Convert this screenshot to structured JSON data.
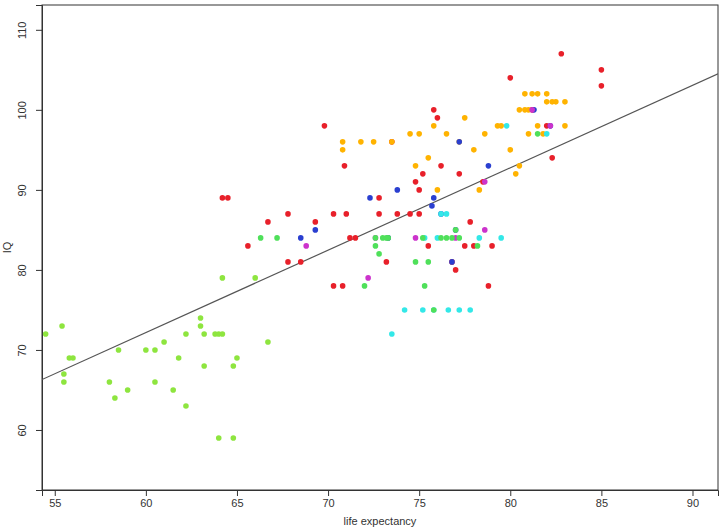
{
  "chart_data": {
    "type": "scatter",
    "x_label": "life expectancy",
    "y_label": "IQ",
    "xlim": [
      54.3,
      91.4
    ],
    "ylim": [
      52.5,
      113.1
    ],
    "xticks": [
      55,
      60,
      65,
      70,
      75,
      80,
      85,
      90
    ],
    "yticks": [
      60,
      70,
      80,
      90,
      100,
      110
    ],
    "marker": "circle",
    "trend_line": {
      "x": [
        54.3,
        91.4
      ],
      "y": [
        66.3,
        104.5
      ]
    },
    "series": [
      {
        "color": "#8ee53f",
        "x": [
          54.5,
          55.4,
          55.5,
          55.5,
          55.8,
          56,
          58,
          58.3,
          58.5,
          59,
          60,
          60.5,
          60.5,
          61,
          61.5,
          61.8,
          62.2,
          62.2,
          63,
          63,
          63.2,
          63.2,
          63.8,
          64,
          64.2,
          64.2,
          64,
          64.8,
          64.8,
          65,
          66.7,
          66
        ],
        "values": [
          72,
          73,
          67,
          66,
          69,
          69,
          66,
          64,
          70,
          65,
          70,
          70,
          66,
          71,
          65,
          69,
          72,
          63,
          74,
          73,
          68,
          72,
          72,
          72,
          72,
          79,
          59,
          59,
          68,
          69,
          71,
          79
        ]
      },
      {
        "color": "#e8202a",
        "x": [
          65.6,
          64.2,
          64.5,
          66.7,
          67.8,
          67.8,
          68.5,
          69.3,
          69.8,
          70.3,
          70.3,
          70.8,
          70.9,
          71,
          71.2,
          71.5,
          72.8,
          72.8,
          73.2,
          73.5,
          73.8,
          74.5,
          74.8,
          75,
          75,
          75.2,
          75.5,
          75.8,
          76,
          76.2,
          76.8,
          77,
          77.2,
          77.5,
          77.8,
          78,
          78.5,
          78.8,
          79,
          80,
          81.2,
          82.3,
          82.8,
          85,
          85,
          82
        ],
        "values": [
          83,
          89,
          89,
          86,
          87,
          81,
          81,
          86,
          98,
          78,
          87,
          78,
          93,
          87,
          84,
          84,
          87,
          89,
          81,
          96,
          87,
          87,
          91,
          87,
          90,
          92,
          83,
          100,
          99,
          93,
          81,
          80,
          92,
          83,
          86,
          83,
          91,
          78,
          83,
          104,
          100,
          94,
          107,
          105,
          103,
          98
        ]
      },
      {
        "color": "#ffb300",
        "x": [
          70.8,
          70.8,
          71.8,
          72.5,
          73.5,
          74.5,
          74.8,
          75,
          75.5,
          75.8,
          76,
          76.5,
          77.5,
          77.2,
          78,
          78.3,
          78.6,
          79.3,
          79.5,
          80,
          80.3,
          80.5,
          80.5,
          80.8,
          81,
          81,
          81.2,
          81.5,
          81.8,
          82,
          82,
          82.3,
          82.5,
          83,
          83,
          81.5,
          80.8
        ],
        "values": [
          96,
          95,
          96,
          96,
          96,
          97,
          93,
          97,
          94,
          98,
          90,
          97,
          99,
          96,
          95,
          90,
          97,
          98,
          98,
          95,
          92,
          93,
          100,
          102,
          100,
          97,
          102,
          102,
          97,
          101,
          102,
          101,
          101,
          98,
          101,
          98,
          100
        ]
      },
      {
        "color": "#2a3fd0",
        "x": [
          68.5,
          69.3,
          72.3,
          73.3,
          73.8,
          75.7,
          75.8,
          76.2,
          77,
          77.2,
          78.8,
          81.3,
          82.2,
          76.8
        ],
        "values": [
          84,
          85,
          89,
          84,
          90,
          88,
          89,
          87,
          85,
          96,
          93,
          100,
          98,
          81
        ]
      },
      {
        "color": "#33e8e8",
        "x": [
          73.5,
          74.2,
          75.2,
          75.8,
          76.2,
          76.5,
          76.6,
          77.2,
          77.8,
          78.3,
          79.5,
          79.8,
          82,
          76,
          75.3
        ],
        "values": [
          72,
          75,
          75,
          75,
          87,
          87,
          75,
          75,
          75,
          84,
          84,
          98,
          97,
          84,
          84
        ]
      },
      {
        "color": "#cc33cc",
        "x": [
          68.8,
          72.2,
          74.8,
          77,
          78.6,
          78.6,
          81.2,
          82.2,
          72.6
        ],
        "values": [
          83,
          79,
          84,
          84,
          85,
          91,
          100,
          98,
          84
        ]
      },
      {
        "color": "#4fe05a",
        "x": [
          66.3,
          67.2,
          72,
          72.6,
          72.6,
          73,
          73.2,
          73.3,
          74.8,
          75.3,
          75.5,
          75.8,
          76.2,
          76.5,
          76.8,
          77,
          77.2,
          75.2,
          78.2,
          81.5,
          72.8
        ],
        "values": [
          84,
          84,
          78,
          83,
          84,
          84,
          84,
          84,
          81,
          78,
          81,
          75,
          84,
          84,
          84,
          85,
          84,
          84,
          83,
          97,
          82
        ]
      }
    ]
  }
}
